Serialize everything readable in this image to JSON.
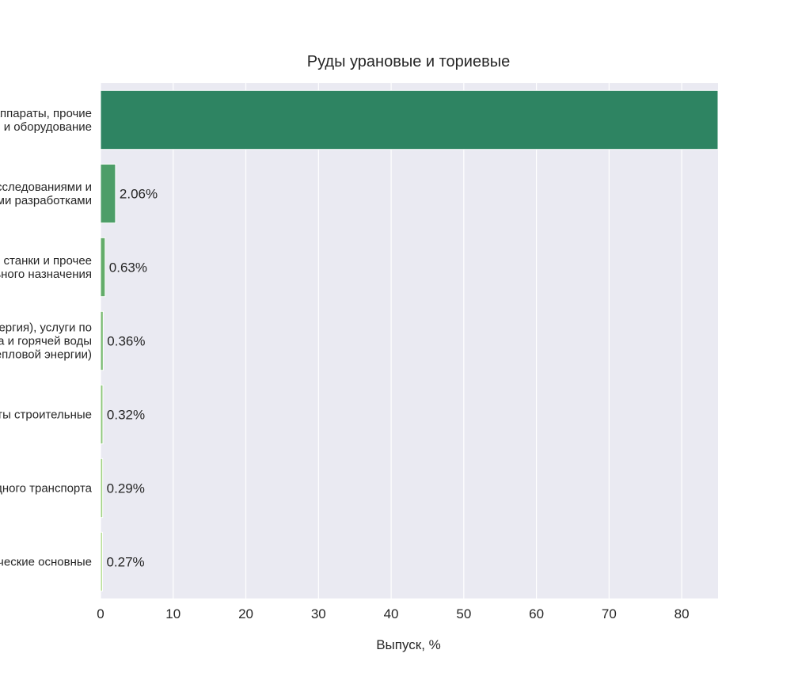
{
  "chart_data": {
    "type": "bar",
    "orientation": "horizontal",
    "title": "Руды урановые и ториевые",
    "xlabel": "Выпуск, %",
    "ylabel": "",
    "xlim": [
      0,
      85
    ],
    "xticks": [
      0,
      10,
      20,
      30,
      40,
      50,
      60,
      70,
      80
    ],
    "grid": true,
    "categories": [
      [
        "Машины и аппараты, прочие",
        "электрическое и оборудование"
      ],
      [
        "Услуги, связанные с научными исследованиями и",
        "экспериментальными разработками"
      ],
      [
        "Машины, станки и прочее",
        "оборудование специального назначения"
      ],
      [
        "Электроэнергия (электроэнергия), услуги по",
        "передаче и распределению пара и горячей воды",
        "(тепловой энергии)"
      ],
      [
        "Работы строительные"
      ],
      [
        "Услуги сухопутного и трубопроводного транспорта"
      ],
      [
        "Запасы и прочие экономические основные"
      ]
    ],
    "values": [
      85.0,
      2.06,
      0.63,
      0.36,
      0.32,
      0.29,
      0.27
    ],
    "value_labels": [
      "",
      "2.06%",
      "0.63%",
      "0.36%",
      "0.32%",
      "0.29%",
      "0.27%"
    ],
    "colors": [
      "#2e8462",
      "#4d9e68",
      "#63ac6a",
      "#7aba72",
      "#8dc77a",
      "#9fd282",
      "#b6de94"
    ]
  }
}
